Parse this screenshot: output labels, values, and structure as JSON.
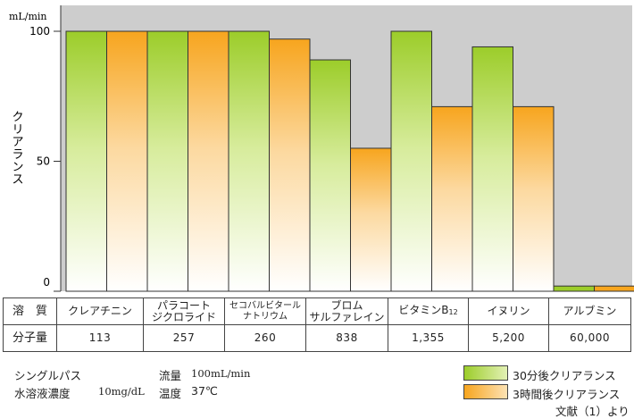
{
  "chart_data": {
    "type": "bar",
    "unit_label": "mL/min",
    "ylabel": "クリアランス",
    "ylim": [
      0,
      100
    ],
    "yticks": [
      0,
      50,
      100
    ],
    "grid": false,
    "categories": [
      "クレアチニン",
      "パラコート ジクロライド",
      "セコバルビタール ナトリウム",
      "ブロム サルファレイン",
      "ビタミンB12",
      "イヌリン",
      "アルブミン"
    ],
    "series": [
      {
        "name": "30分後クリアランス",
        "color_top": "#9ccd2a",
        "color_bottom": "#ffffff",
        "values": [
          100,
          100,
          100,
          89,
          100,
          94,
          2
        ]
      },
      {
        "name": "3時間後クリアランス",
        "color_top": "#f7a51e",
        "color_bottom": "#ffffff",
        "values": [
          100,
          100,
          97,
          55,
          71,
          71,
          2
        ]
      }
    ]
  },
  "table": {
    "row1_header": "溶　質",
    "row2_header": "分子量",
    "substances": [
      {
        "line1": "クレアチニン",
        "line2": "",
        "mw": "113"
      },
      {
        "line1": "パラコート",
        "line2": "ジクロライド",
        "mw": "257"
      },
      {
        "line1": "セコバルビタール",
        "line2": "ナトリウム",
        "mw": "260"
      },
      {
        "line1": "ブロム",
        "line2": "サルファレイン",
        "mw": "838"
      },
      {
        "line1": "ビタミンB",
        "sub": "12",
        "line2": "",
        "mw": "1,355"
      },
      {
        "line1": "イヌリン",
        "line2": "",
        "mw": "5,200"
      },
      {
        "line1": "アルブミン",
        "line2": "",
        "mw": "60,000"
      }
    ]
  },
  "conditions": {
    "single_pass": "シングルパス",
    "conc_label": "水溶液濃度",
    "conc_value": "10mg/dL",
    "flow_label": "流量",
    "flow_value": "100mL/min",
    "temp_label": "温度",
    "temp_value": "37℃"
  },
  "legend": {
    "item1": "30分後クリアランス",
    "item2": "3時間後クリアランス",
    "color1": "#9ccd2a",
    "color2": "#f7a51e"
  },
  "citation": "文献（1）より"
}
